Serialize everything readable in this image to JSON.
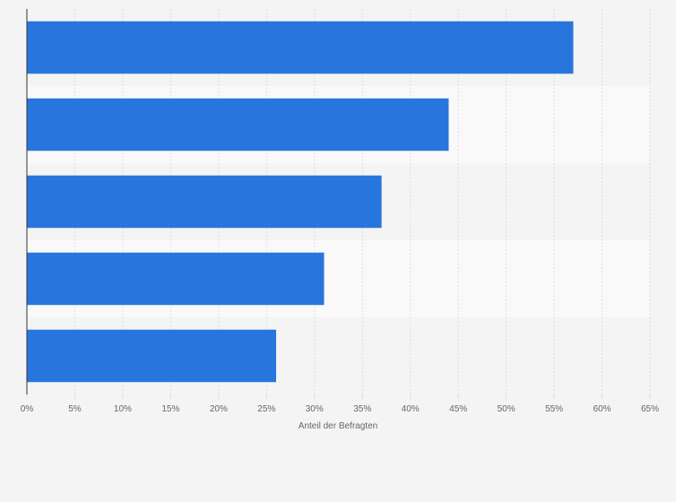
{
  "chart_data": {
    "type": "bar",
    "orientation": "horizontal",
    "title": "",
    "xlabel": "Anteil der Befragten",
    "ylabel": "",
    "categories": [
      "",
      "",
      "",
      "",
      ""
    ],
    "values": [
      57,
      44,
      37,
      31,
      26
    ],
    "unit": "%",
    "xlim": [
      0,
      65
    ],
    "xticks": [
      0,
      5,
      10,
      15,
      20,
      25,
      30,
      35,
      40,
      45,
      50,
      55,
      60,
      65
    ],
    "xtick_labels": [
      "0%",
      "5%",
      "10%",
      "15%",
      "20%",
      "25%",
      "30%",
      "35%",
      "40%",
      "45%",
      "50%",
      "55%",
      "60%",
      "65%"
    ],
    "grid": true,
    "legend": "none"
  },
  "colors": {
    "bar": "#2876dd",
    "background": "#f4f4f4",
    "band_alt": "#f9f9f9",
    "grid": "#dddddd",
    "axis": "#333333",
    "text": "#666666"
  }
}
